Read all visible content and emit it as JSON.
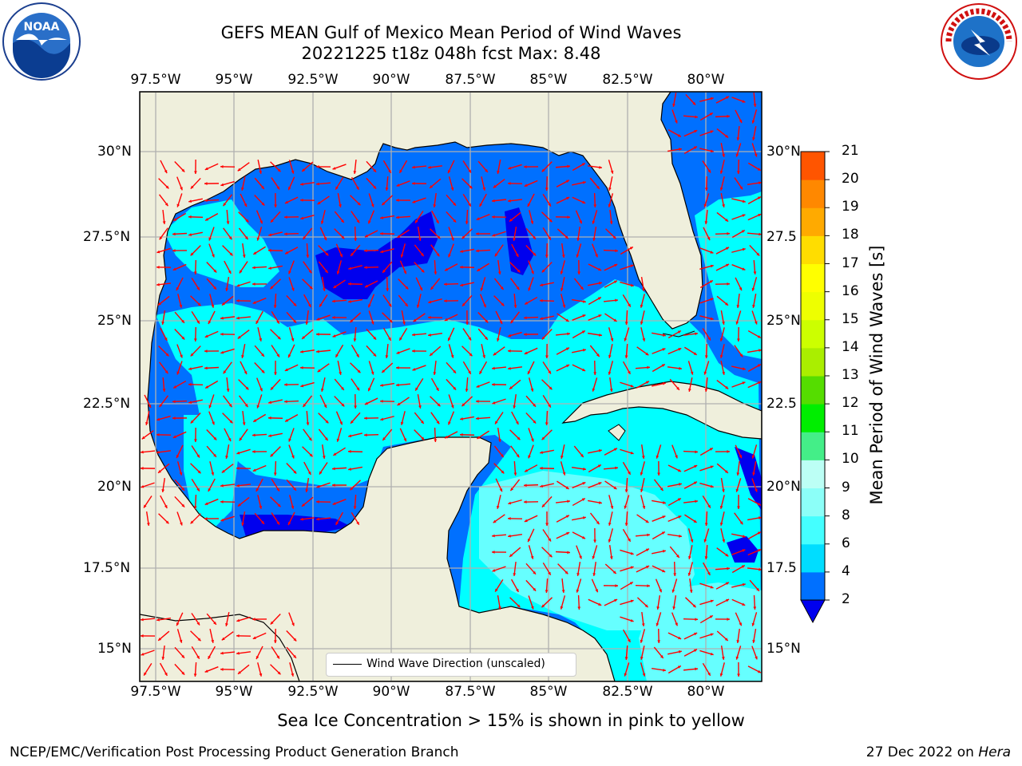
{
  "title_line1": "GEFS MEAN Gulf of Mexico Mean Period of Wind Waves",
  "title_line2": "20221225 t18z 048h fcst   Max: 8.48",
  "lon_labels": [
    "97.5°W",
    "95°W",
    "92.5°W",
    "90°W",
    "87.5°W",
    "85°W",
    "82.5°W",
    "80°W"
  ],
  "lat_labels": [
    "30°N",
    "27.5°N",
    "25°N",
    "22.5°N",
    "20°N",
    "17.5°N",
    "15°N"
  ],
  "lat_labels_right": [
    "30°N",
    "27.5",
    "25°N",
    "22.5",
    "20°N",
    "17.5",
    "15°N"
  ],
  "colorbar": {
    "title": "Mean Period of Wind Waves [s]",
    "ticks": [
      "2",
      "4",
      "6",
      "8",
      "9",
      "10",
      "11",
      "12",
      "13",
      "14",
      "15",
      "16",
      "17",
      "18",
      "19",
      "20",
      "21"
    ],
    "colors": [
      "#0070ff",
      "#00ddff",
      "#44ffff",
      "#8cfff8",
      "#bcfff5",
      "#44ee88",
      "#00ee00",
      "#55dd00",
      "#aaee00",
      "#ccff00",
      "#eeff00",
      "#ffff00",
      "#ffdd00",
      "#ffaa00",
      "#ff8800",
      "#ff5500",
      "#ff2200",
      "#ff0000"
    ],
    "extend_color": "#0000ee"
  },
  "legend_label": "Wind Wave Direction (unscaled)",
  "sea_ice_note": "Sea Ice Concentration > 15% is shown in pink to yellow",
  "credit": "NCEP/EMC/Verification Post Processing Product Generation Branch",
  "date_text": "27 Dec 2022 on ",
  "machine": "Hera",
  "map_colors": {
    "land": "#efefdc",
    "arrow": "#ff0000",
    "grid": "#b0b0b0",
    "coast": "#000000"
  },
  "logos": {
    "noaa_text": "NOAA",
    "nws_text": "NATIONAL WEATHER SERVICE"
  }
}
